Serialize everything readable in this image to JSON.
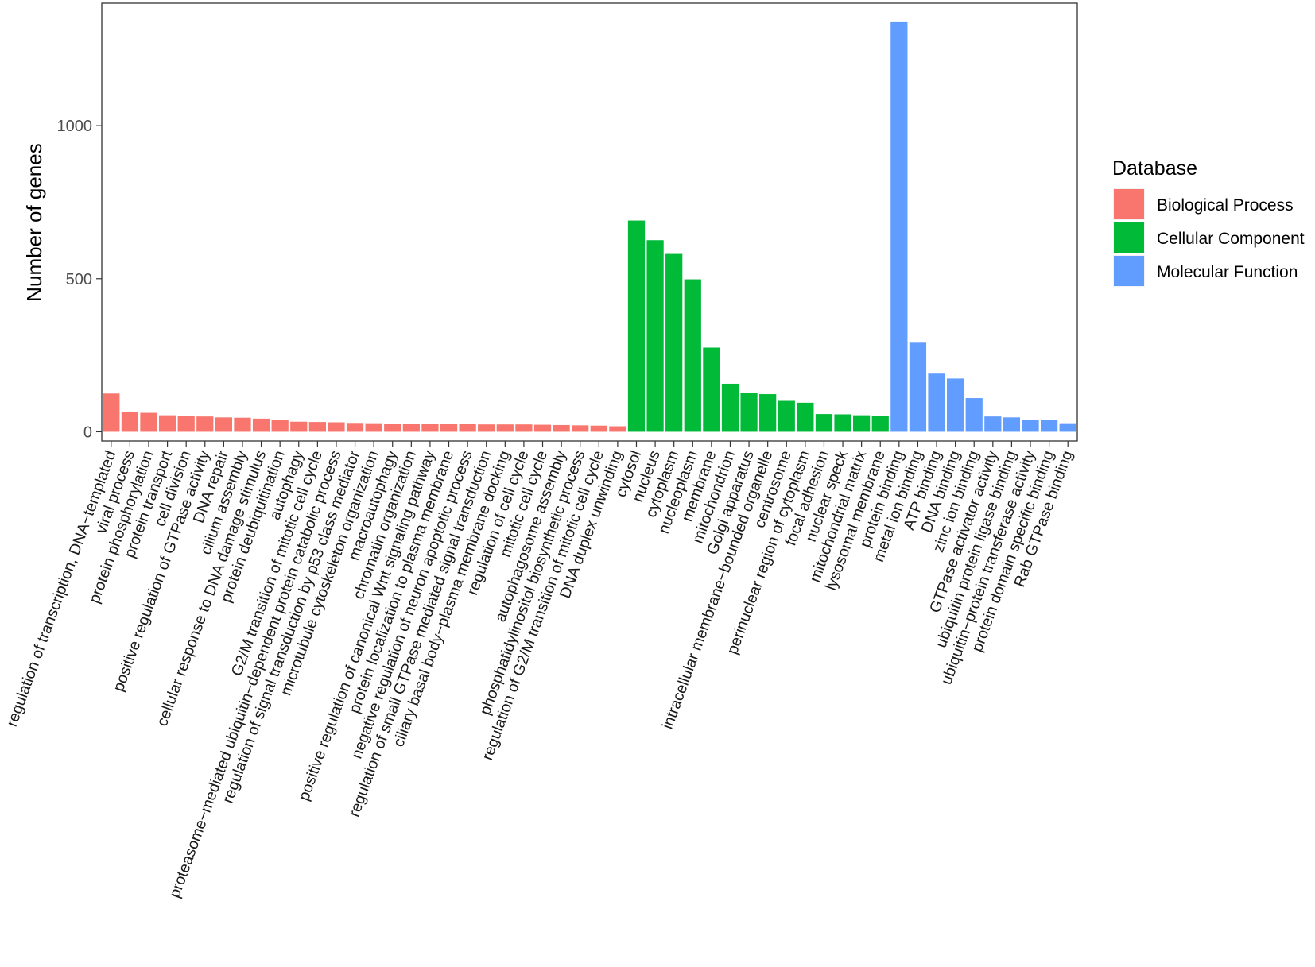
{
  "chart_data": {
    "type": "bar",
    "title": "",
    "xlabel": "",
    "ylabel": "Number of genes",
    "ylim": [
      -30,
      1400
    ],
    "yticks": [
      0,
      500,
      1000
    ],
    "grid": false,
    "legend": {
      "title": "Database",
      "placement": "right"
    },
    "series": [
      {
        "name": "Biological Process",
        "color": "#F8766D",
        "categories": [
          "regulation of transcription, DNA−templated",
          "viral process",
          "protein phosphorylation",
          "protein transport",
          "cell division",
          "positive regulation of GTPase activity",
          "DNA repair",
          "cilium assembly",
          "cellular response to DNA damage stimulus",
          "protein deubiquitination",
          "autophagy",
          "G2/M transition of mitotic cell cycle",
          "proteasome−mediated ubiquitin−dependent protein catabolic process",
          "regulation of signal transduction by p53 class mediator",
          "microtubule cytoskeleton organization",
          "macroautophagy",
          "chromatin organization",
          "positive regulation of canonical Wnt signaling pathway",
          "protein localization to plasma membrane",
          "negative regulation of neuron apoptotic process",
          "regulation of small GTPase mediated signal transduction",
          "ciliary basal body−plasma membrane docking",
          "regulation of cell cycle",
          "mitotic cell cycle",
          "autophagosome assembly",
          "phosphatidylinositol biosynthetic process",
          "regulation of G2/M transition of mitotic cell cycle",
          "DNA duplex unwinding"
        ],
        "values": [
          125,
          64,
          62,
          54,
          51,
          50,
          47,
          46,
          43,
          40,
          33,
          32,
          31,
          29,
          28,
          27,
          26,
          26,
          25,
          25,
          24,
          24,
          24,
          23,
          22,
          21,
          20,
          18
        ]
      },
      {
        "name": "Cellular Component",
        "color": "#00BA38",
        "categories": [
          "cytosol",
          "nucleus",
          "cytoplasm",
          "nucleoplasm",
          "membrane",
          "mitochondrion",
          "Golgi apparatus",
          "intracellular membrane−bounded organelle",
          "centrosome",
          "perinuclear region of cytoplasm",
          "focal adhesion",
          "nuclear speck",
          "mitochondrial matrix",
          "lysosomal membrane"
        ],
        "values": [
          690,
          626,
          581,
          498,
          275,
          157,
          128,
          123,
          101,
          95,
          58,
          57,
          54,
          51
        ]
      },
      {
        "name": "Molecular Function",
        "color": "#619CFF",
        "categories": [
          "protein binding",
          "metal ion binding",
          "ATP binding",
          "DNA binding",
          "zinc ion binding",
          "GTPase activator activity",
          "ubiquitin protein ligase binding",
          "ubiquitin−protein transferase activity",
          "protein domain specific binding",
          "Rab GTPase binding"
        ],
        "values": [
          1338,
          291,
          190,
          174,
          110,
          50,
          47,
          40,
          39,
          28
        ]
      }
    ]
  }
}
